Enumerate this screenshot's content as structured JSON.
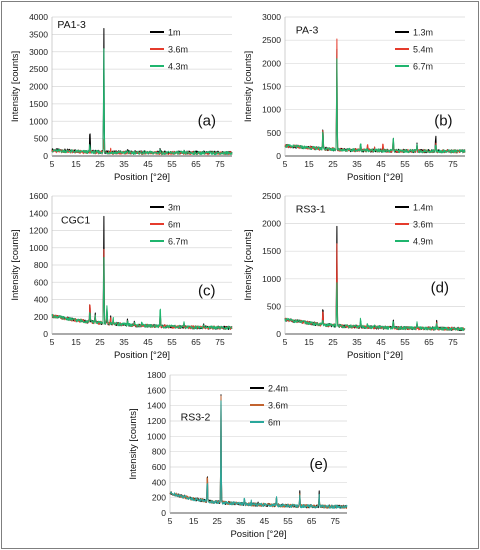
{
  "figure": {
    "border_color": "#7f7f7f"
  },
  "chart_data": [
    {
      "type": "line",
      "sample_label": "PA1-3",
      "panel_letter": "(a)",
      "xlabel": "Position [°2θ]",
      "ylabel": "Intensity [counts]",
      "xlim": [
        5,
        80
      ],
      "ylim": [
        0,
        4000
      ],
      "xticks": [
        5,
        15,
        25,
        35,
        45,
        55,
        65,
        75
      ],
      "yticks": [
        0,
        500,
        1000,
        1500,
        2000,
        2500,
        3000,
        3500,
        4000
      ],
      "background": [
        [
          5,
          170
        ],
        [
          20,
          130
        ],
        [
          30,
          110
        ],
        [
          50,
          100
        ],
        [
          80,
          95
        ]
      ],
      "series": [
        {
          "name": "1m",
          "color": "#000000",
          "scale": 1.0,
          "peaks": [
            [
              20.8,
              780
            ],
            [
              26.6,
              3650
            ],
            [
              36.5,
              230
            ],
            [
              39.4,
              150
            ],
            [
              50.1,
              250
            ],
            [
              60,
              140
            ],
            [
              68.2,
              160
            ]
          ]
        },
        {
          "name": "3.6m",
          "color": "#e53b2c",
          "scale": 0.85,
          "peaks": [
            [
              20.8,
              230
            ],
            [
              26.6,
              520
            ],
            [
              29.4,
              260
            ],
            [
              36.5,
              120
            ],
            [
              50.1,
              110
            ]
          ]
        },
        {
          "name": "4.3m",
          "color": "#1fb56e",
          "scale": 0.9,
          "peaks": [
            [
              20.8,
              350
            ],
            [
              26.6,
              3100
            ],
            [
              36.5,
              180
            ],
            [
              39.4,
              120
            ],
            [
              50.1,
              200
            ],
            [
              60,
              130
            ],
            [
              68.2,
              110
            ]
          ]
        }
      ]
    },
    {
      "type": "line",
      "sample_label": "PA-3",
      "panel_letter": "(b)",
      "xlabel": "Position [°2θ]",
      "ylabel": "Intensity [counts]",
      "xlim": [
        5,
        80
      ],
      "ylim": [
        0,
        3000
      ],
      "xticks": [
        5,
        15,
        25,
        35,
        45,
        55,
        65,
        75
      ],
      "yticks": [
        0,
        500,
        1000,
        1500,
        2000,
        2500,
        3000
      ],
      "background": [
        [
          5,
          220
        ],
        [
          20,
          160
        ],
        [
          30,
          130
        ],
        [
          50,
          110
        ],
        [
          80,
          100
        ]
      ],
      "series": [
        {
          "name": "1.3m",
          "color": "#000000",
          "scale": 1.0,
          "peaks": [
            [
              20.8,
              700
            ],
            [
              26.6,
              2300
            ],
            [
              36.5,
              280
            ],
            [
              39.4,
              200
            ],
            [
              42.4,
              180
            ],
            [
              45.8,
              170
            ],
            [
              50.1,
              420
            ],
            [
              54.9,
              160
            ],
            [
              60,
              250
            ],
            [
              67.8,
              480
            ]
          ]
        },
        {
          "name": "5.4m",
          "color": "#e53b2c",
          "scale": 1.0,
          "peaks": [
            [
              20.8,
              650
            ],
            [
              26.6,
              2500
            ],
            [
              36.5,
              260
            ],
            [
              39.4,
              300
            ],
            [
              42.4,
              200
            ],
            [
              45.8,
              280
            ],
            [
              50.1,
              400
            ],
            [
              60,
              240
            ],
            [
              67.8,
              300
            ]
          ]
        },
        {
          "name": "6.7m",
          "color": "#1fb56e",
          "scale": 1.0,
          "peaks": [
            [
              20.8,
              600
            ],
            [
              26.6,
              2100
            ],
            [
              36.5,
              300
            ],
            [
              39.4,
              180
            ],
            [
              50.1,
              450
            ],
            [
              60,
              260
            ],
            [
              67.8,
              280
            ]
          ]
        }
      ]
    },
    {
      "type": "line",
      "sample_label": "CGC1",
      "panel_letter": "(c)",
      "xlabel": "Position [°2θ]",
      "ylabel": "Intensity [counts]",
      "xlim": [
        5,
        80
      ],
      "ylim": [
        0,
        1600
      ],
      "xticks": [
        5,
        15,
        25,
        35,
        45,
        55,
        65,
        75
      ],
      "yticks": [
        0,
        200,
        400,
        600,
        800,
        1000,
        1200,
        1400,
        1600
      ],
      "background": [
        [
          5,
          210
        ],
        [
          15,
          160
        ],
        [
          25,
          130
        ],
        [
          40,
          100
        ],
        [
          60,
          80
        ],
        [
          80,
          70
        ]
      ],
      "series": [
        {
          "name": "3m",
          "color": "#000000",
          "scale": 1.0,
          "peaks": [
            [
              20.8,
              380
            ],
            [
              23,
              260
            ],
            [
              26.6,
              1350
            ],
            [
              27.9,
              300
            ],
            [
              29.4,
              220
            ],
            [
              36.5,
              170
            ],
            [
              39.4,
              150
            ],
            [
              42.4,
              130
            ],
            [
              50.1,
              260
            ],
            [
              60,
              120
            ],
            [
              68.2,
              130
            ]
          ]
        },
        {
          "name": "6m",
          "color": "#e53b2c",
          "scale": 1.0,
          "peaks": [
            [
              20.8,
              380
            ],
            [
              23,
              240
            ],
            [
              26.6,
              1000
            ],
            [
              27.9,
              280
            ],
            [
              29.4,
              200
            ],
            [
              36.5,
              150
            ],
            [
              50.1,
              230
            ]
          ]
        },
        {
          "name": "6.7m",
          "color": "#1fb56e",
          "scale": 1.0,
          "peaks": [
            [
              20.8,
              300
            ],
            [
              23,
              220
            ],
            [
              26.6,
              900
            ],
            [
              27.9,
              360
            ],
            [
              30.5,
              200
            ],
            [
              36.5,
              160
            ],
            [
              39.4,
              140
            ],
            [
              42.4,
              160
            ],
            [
              50.1,
              340
            ],
            [
              60,
              130
            ],
            [
              68.2,
              120
            ]
          ]
        }
      ]
    },
    {
      "type": "line",
      "sample_label": "RS3-1",
      "panel_letter": "(d)",
      "xlabel": "Position [°2θ]",
      "ylabel": "Intensity [counts]",
      "xlim": [
        5,
        80
      ],
      "ylim": [
        0,
        2500
      ],
      "xticks": [
        5,
        15,
        25,
        35,
        45,
        55,
        65,
        75
      ],
      "yticks": [
        0,
        500,
        1000,
        1500,
        2000,
        2500
      ],
      "background": [
        [
          5,
          260
        ],
        [
          20,
          170
        ],
        [
          30,
          140
        ],
        [
          50,
          110
        ],
        [
          80,
          90
        ]
      ],
      "series": [
        {
          "name": "1.4m",
          "color": "#000000",
          "scale": 1.0,
          "peaks": [
            [
              20.8,
              520
            ],
            [
              26.6,
              1950
            ],
            [
              36.5,
              250
            ],
            [
              39.4,
              180
            ],
            [
              42.4,
              150
            ],
            [
              50.1,
              280
            ],
            [
              60,
              190
            ],
            [
              68.2,
              230
            ]
          ]
        },
        {
          "name": "3.6m",
          "color": "#e53b2c",
          "scale": 1.0,
          "peaks": [
            [
              20.8,
              480
            ],
            [
              26.6,
              1650
            ],
            [
              36.5,
              230
            ],
            [
              50.1,
              250
            ],
            [
              60,
              170
            ],
            [
              68.2,
              200
            ]
          ]
        },
        {
          "name": "4.9m",
          "color": "#1fb56e",
          "scale": 1.0,
          "peaks": [
            [
              20.8,
              300
            ],
            [
              26.6,
              950
            ],
            [
              36.5,
              300
            ],
            [
              39.4,
              200
            ],
            [
              42.4,
              160
            ],
            [
              50.1,
              270
            ],
            [
              60,
              200
            ],
            [
              68.2,
              220
            ]
          ]
        }
      ]
    },
    {
      "type": "line",
      "sample_label": "RS3-2",
      "panel_letter": "(e)",
      "xlabel": "Position [°2θ]",
      "ylabel": "Intensity [counts]",
      "xlim": [
        5,
        80
      ],
      "ylim": [
        0,
        1800
      ],
      "xticks": [
        5,
        15,
        25,
        35,
        45,
        55,
        65,
        75
      ],
      "yticks": [
        0,
        200,
        400,
        600,
        800,
        1000,
        1200,
        1400,
        1600,
        1800
      ],
      "background": [
        [
          5,
          260
        ],
        [
          15,
          180
        ],
        [
          25,
          140
        ],
        [
          40,
          110
        ],
        [
          60,
          90
        ],
        [
          80,
          80
        ]
      ],
      "series": [
        {
          "name": "2.4m",
          "color": "#000000",
          "scale": 1.0,
          "peaks": [
            [
              20.8,
              580
            ],
            [
              26.6,
              1550
            ],
            [
              36.5,
              190
            ],
            [
              39.4,
              160
            ],
            [
              42.4,
              150
            ],
            [
              50.1,
              240
            ],
            [
              60,
              280
            ],
            [
              68.2,
              280
            ]
          ]
        },
        {
          "name": "3.6m",
          "color": "#c2632f",
          "scale": 1.0,
          "peaks": [
            [
              20.8,
              560
            ],
            [
              26.6,
              1550
            ],
            [
              36.5,
              180
            ],
            [
              50.1,
              220
            ],
            [
              60,
              260
            ],
            [
              68.2,
              250
            ]
          ]
        },
        {
          "name": "6m",
          "color": "#2aa79b",
          "scale": 1.0,
          "peaks": [
            [
              20.8,
              450
            ],
            [
              26.6,
              1450
            ],
            [
              36.5,
              200
            ],
            [
              39.4,
              160
            ],
            [
              50.1,
              230
            ],
            [
              60,
              240
            ],
            [
              68.2,
              260
            ]
          ]
        }
      ]
    }
  ]
}
